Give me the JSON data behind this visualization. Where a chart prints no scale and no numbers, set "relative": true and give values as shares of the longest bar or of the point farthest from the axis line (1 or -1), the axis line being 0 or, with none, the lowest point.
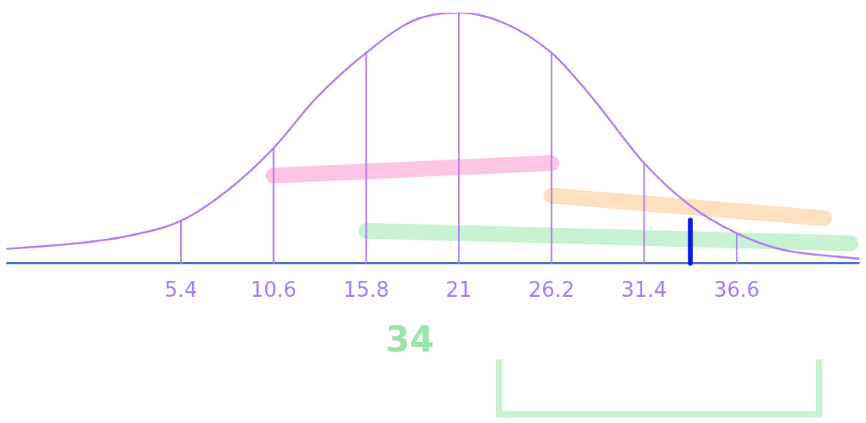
{
  "chart_data": {
    "type": "line",
    "relative": true,
    "series": [
      {
        "color": "#b07cf0",
        "x": [
          -4.4,
          0,
          2.5,
          5.4,
          8,
          10.6,
          13,
          15.8,
          18.5,
          21,
          23.5,
          26.2,
          28.5,
          31.4,
          34,
          36.6,
          39,
          43.5
        ],
        "values": [
          0.057,
          0.083,
          0.11,
          0.17,
          0.29,
          0.46,
          0.66,
          0.84,
          0.97,
          1,
          0.96,
          0.84,
          0.66,
          0.4,
          0.23,
          0.12,
          0.057,
          0.018
        ]
      },
      {
        "type": "line",
        "color": "#fcc5e3",
        "x": [
          10.6,
          26.2
        ],
        "values": [
          0.35,
          0.4
        ]
      },
      {
        "type": "line",
        "color": "#fde0c0",
        "x": [
          26.2,
          41.5
        ],
        "values": [
          0.27,
          0.18
        ]
      },
      {
        "type": "line",
        "color": "#c8f2d2",
        "x": [
          15.8,
          43
        ],
        "values": [
          0.13,
          0.08
        ]
      }
    ],
    "xlim": [
      -4.4,
      43.5
    ],
    "xticks": [
      5.4,
      10.6,
      15.8,
      21,
      26.2,
      31.4,
      36.6
    ],
    "ref_lines": [
      {
        "axis": "x",
        "value": 5.4,
        "color": "#b07cf0"
      },
      {
        "axis": "x",
        "value": 10.6,
        "color": "#b07cf0"
      },
      {
        "axis": "x",
        "value": 15.8,
        "color": "#b07cf0"
      },
      {
        "axis": "x",
        "value": 21,
        "color": "#b07cf0"
      },
      {
        "axis": "x",
        "value": 26.2,
        "color": "#b07cf0"
      },
      {
        "axis": "x",
        "value": 31.4,
        "color": "#b07cf0"
      },
      {
        "axis": "x",
        "value": 36.6,
        "color": "#b07cf0"
      },
      {
        "axis": "x",
        "value": 34,
        "color": "#0a1ee0"
      }
    ],
    "annotations": [
      "34"
    ],
    "grid": false,
    "legend": false,
    "marker": "none",
    "line_style": "solid"
  }
}
